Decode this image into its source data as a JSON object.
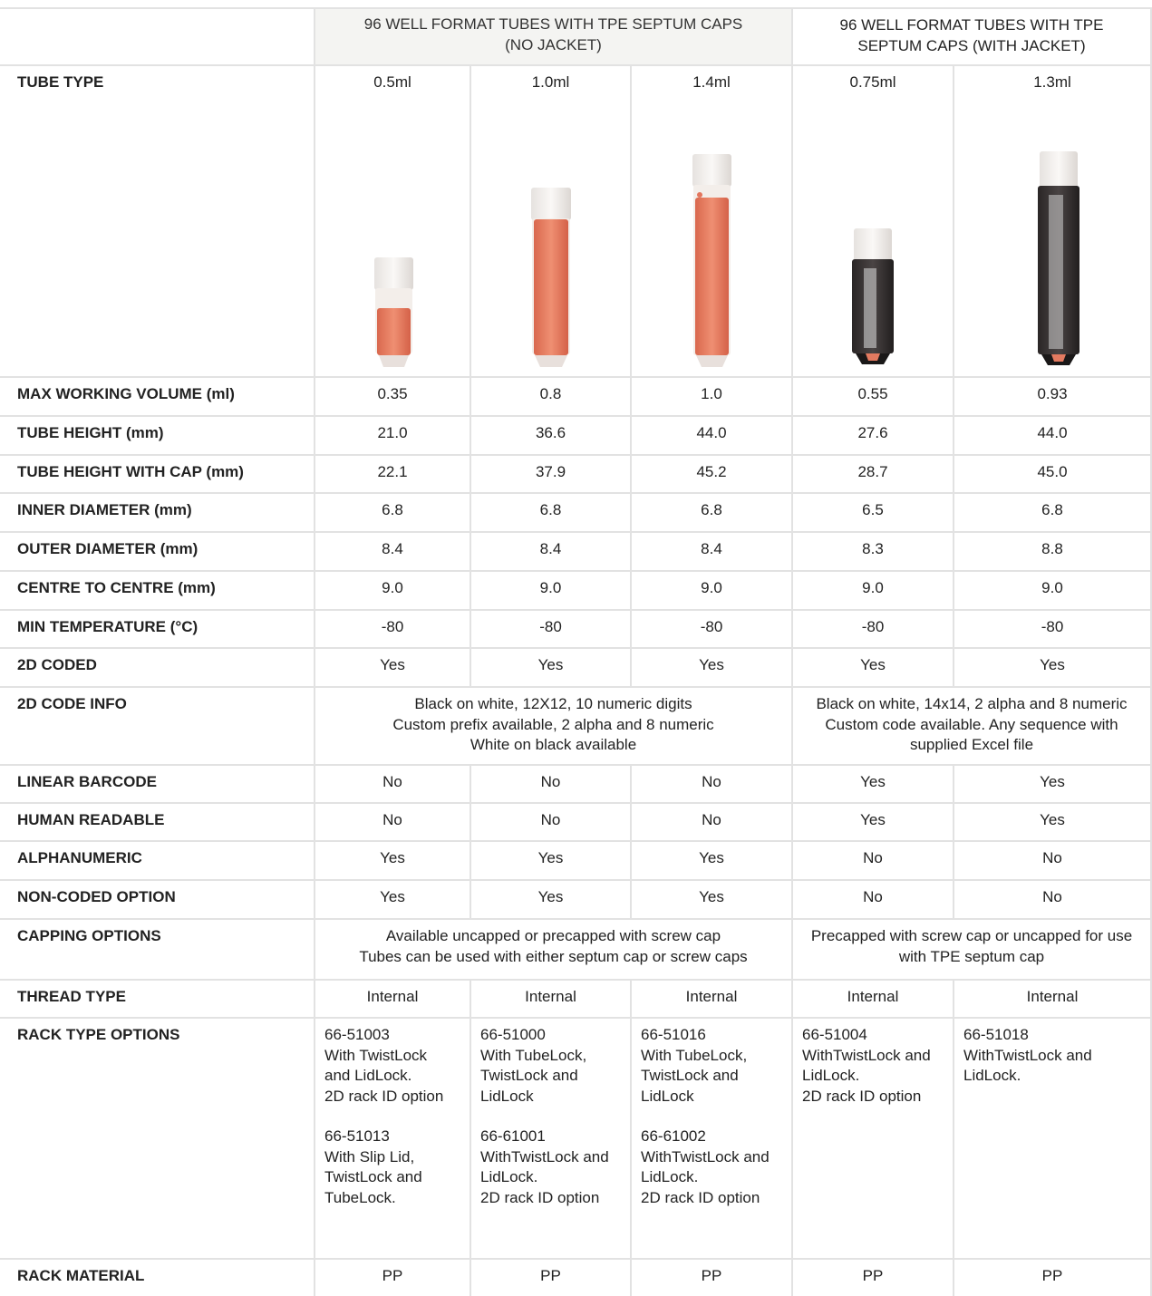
{
  "table": {
    "group_headers": [
      [
        "96 WELL FORMAT TUBES WITH TPE SEPTUM CAPS",
        "(NO JACKET)"
      ],
      [
        "96 WELL FORMAT TUBES WITH TPE",
        "SEPTUM CAPS (WITH JACKET)"
      ]
    ],
    "rows": [
      {
        "label": "TUBE TYPE",
        "cells": [
          "0.5ml",
          "1.0ml",
          "1.4ml",
          "0.75ml",
          "1.3ml"
        ]
      },
      {
        "label": "MAX WORKING VOLUME (ml)",
        "cells": [
          "0.35",
          "0.8",
          "1.0",
          "0.55",
          "0.93"
        ]
      },
      {
        "label": "TUBE HEIGHT (mm)",
        "cells": [
          "21.0",
          "36.6",
          "44.0",
          "27.6",
          "44.0"
        ]
      },
      {
        "label": "TUBE HEIGHT WITH CAP (mm)",
        "cells": [
          "22.1",
          "37.9",
          "45.2",
          "28.7",
          "45.0"
        ]
      },
      {
        "label": "INNER DIAMETER (mm)",
        "cells": [
          "6.8",
          "6.8",
          "6.8",
          "6.5",
          "6.8"
        ]
      },
      {
        "label": "OUTER DIAMETER (mm)",
        "cells": [
          "8.4",
          "8.4",
          "8.4",
          "8.3",
          "8.8"
        ]
      },
      {
        "label": "CENTRE TO CENTRE (mm)",
        "cells": [
          "9.0",
          "9.0",
          "9.0",
          "9.0",
          "9.0"
        ]
      },
      {
        "label": "MIN TEMPERATURE (°C)",
        "cells": [
          "-80",
          "-80",
          "-80",
          "-80",
          "-80"
        ]
      },
      {
        "label": "2D CODED",
        "cells": [
          "Yes",
          "Yes",
          "Yes",
          "Yes",
          "Yes"
        ]
      },
      {
        "label": "2D CODE INFO",
        "cells": [
          [
            "Black on white, 12X12, 10 numeric digits",
            "Custom prefix available, 2 alpha and 8 numeric",
            "White on black available"
          ],
          [
            "Black on white, 14x14, 2 alpha and 8 numeric",
            "Custom code available. Any sequence with",
            "supplied Excel file"
          ]
        ]
      },
      {
        "label": "LINEAR BARCODE",
        "cells": [
          "No",
          "No",
          "No",
          "Yes",
          "Yes"
        ]
      },
      {
        "label": "HUMAN READABLE",
        "cells": [
          "No",
          "No",
          "No",
          "Yes",
          "Yes"
        ]
      },
      {
        "label": "ALPHANUMERIC",
        "cells": [
          "Yes",
          "Yes",
          "Yes",
          "No",
          "No"
        ]
      },
      {
        "label": "NON-CODED OPTION",
        "cells": [
          "Yes",
          "Yes",
          "Yes",
          "No",
          "No"
        ]
      },
      {
        "label": "CAPPING OPTIONS",
        "cells": [
          [
            "Available uncapped or precapped with screw cap",
            "Tubes can be used with either septum cap or screw caps"
          ],
          [
            "Precapped with screw cap or uncapped for use",
            "with TPE septum cap"
          ]
        ]
      },
      {
        "label": "THREAD TYPE",
        "cells": [
          "Internal",
          "Internal",
          "Internal",
          "Internal",
          "Internal"
        ]
      },
      {
        "label": "RACK TYPE OPTIONS",
        "cells": [
          [
            [
              "66-51003",
              "With TwistLock",
              "and LidLock.",
              "2D rack ID option"
            ],
            [
              "66-51013",
              "With Slip Lid,",
              "TwistLock and",
              "TubeLock."
            ]
          ],
          [
            [
              "66-51000",
              "With TubeLock,",
              "TwistLock and",
              "LidLock"
            ],
            [
              "66-61001",
              "WithTwistLock and",
              "LidLock.",
              "2D rack ID option"
            ]
          ],
          [
            [
              "66-51016",
              "With TubeLock,",
              "TwistLock and",
              "LidLock"
            ],
            [
              "66-61002",
              "WithTwistLock and",
              "LidLock.",
              "2D rack ID option"
            ]
          ],
          [
            [
              "66-51004",
              "WithTwistLock and",
              "LidLock.",
              "2D rack ID option"
            ]
          ],
          [
            [
              "66-51018",
              "WithTwistLock and",
              "LidLock."
            ]
          ]
        ]
      },
      {
        "label": "RACK MATERIAL",
        "cells": [
          "PP",
          "PP",
          "PP",
          "PP",
          "PP"
        ]
      }
    ]
  }
}
